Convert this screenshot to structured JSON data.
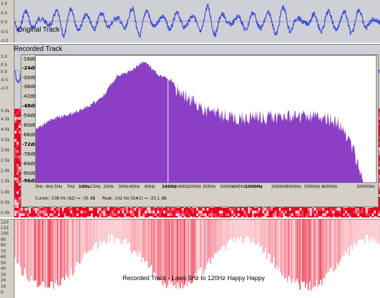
{
  "tracks": {
    "original_title": "Original Track",
    "recorded_title": "Recorded Track",
    "ruler_ticks_top": [
      "1.0",
      "0.5",
      "0.0",
      "-0.5",
      "-1.0"
    ],
    "ruler_ticks_mid": [
      "1.0",
      "0.5",
      "0.0",
      "-0.5",
      "-1.0"
    ],
    "colors": {
      "waveform": "#3c4fd6",
      "track_bg": "#cfcfd6",
      "ruler_bg": "#d4d0c8"
    }
  },
  "spectrogram": {
    "ruler_ticks_top": [
      "5.0k",
      "4.5k",
      "4.0k",
      "3.5k",
      "3.0k",
      "2.5k",
      "2.0k",
      "1.5k",
      "1.0k",
      "0.5k",
      "0.0k"
    ],
    "ruler_ticks_bottom": [
      "120",
      "110",
      "100",
      "90",
      "80",
      "70",
      "60",
      "50",
      "40",
      "30",
      "20",
      "10",
      "0"
    ],
    "caption": "Recorded Track - Lows 5Hz to 120Hz Happy Happy",
    "colors": {
      "hot": "#e8001c",
      "warm": "#f06080",
      "cold": "#ffffff"
    }
  },
  "spectrum_window": {
    "db_labels": [
      "-18dB",
      "-24dB",
      "-30dB",
      "-36dB",
      "-42dB",
      "-48dB",
      "-54dB",
      "-60dB",
      "-66dB",
      "-72dB",
      "-78dB",
      "-84dB",
      "-90dB",
      "-96dB"
    ],
    "db_bold": [
      "-24dB",
      "-48dB",
      "-72dB",
      "-96dB"
    ],
    "freq_labels": [
      "3Hz",
      "4Hz",
      "5Hz",
      "7Hz",
      "10Hz",
      "15Hz",
      "20Hz",
      "30Hz",
      "40Hz",
      "60Hz",
      "100Hz",
      "140Hz",
      "200Hz",
      "300Hz",
      "500Hz",
      "690Hz",
      "1000Hz",
      "2000Hz",
      "3000Hz",
      "5000Hz",
      "8000Hz",
      "20000Hz"
    ],
    "freq_bold": [
      "10Hz",
      "100Hz",
      "1000Hz"
    ],
    "status_cursor": "Cursor: 108 Hz (A2) = -35 dB",
    "status_peak": "Peak: 102 Hz (G#2) = -33.1 dB",
    "colors": {
      "fill": "#8a3fc4",
      "bg": "#ffffff",
      "frame": "#d4d0c8"
    }
  }
}
